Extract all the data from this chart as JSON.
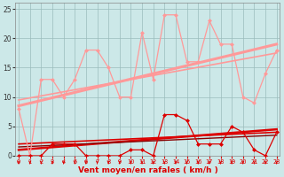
{
  "x": [
    0,
    1,
    2,
    3,
    4,
    5,
    6,
    7,
    8,
    9,
    10,
    11,
    12,
    13,
    14,
    15,
    16,
    17,
    18,
    19,
    20,
    21,
    22,
    23
  ],
  "rafales": [
    8,
    0,
    13,
    13,
    10,
    13,
    18,
    18,
    15,
    10,
    10,
    21,
    13,
    24,
    24,
    16,
    16,
    23,
    19,
    19,
    10,
    9,
    14,
    18
  ],
  "vent_moyen": [
    0,
    0,
    0,
    2,
    2,
    2,
    0,
    0,
    0,
    0,
    1,
    1,
    0,
    7,
    7,
    6,
    2,
    2,
    2,
    5,
    4,
    1,
    0,
    4
  ],
  "trend_raf_y0": 8.5,
  "trend_raf_y1": 19.0,
  "trend_raf2_y0": 9.5,
  "trend_raf2_y1": 17.5,
  "trend_vent_y0": 1.0,
  "trend_vent_y1": 4.5,
  "trend_vent2_y0": 2.0,
  "trend_vent2_y1": 4.0,
  "trend_vent3_y0": 1.5,
  "trend_vent3_y1": 3.5,
  "bg_color": "#cce8e8",
  "grid_color": "#9bbcbc",
  "rafales_color": "#ff9999",
  "vent_color": "#dd0000",
  "xlabel": "Vent moyen/en rafales ( km/h )",
  "ylim": [
    0,
    26
  ],
  "yticks": [
    0,
    5,
    10,
    15,
    20,
    25
  ],
  "xticks": [
    0,
    1,
    2,
    3,
    4,
    5,
    6,
    7,
    8,
    9,
    10,
    11,
    12,
    13,
    14,
    15,
    16,
    17,
    18,
    19,
    20,
    21,
    22,
    23
  ]
}
